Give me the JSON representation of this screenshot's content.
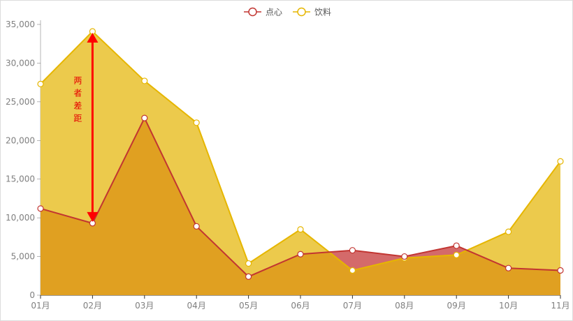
{
  "chart_data": {
    "type": "area",
    "title": "",
    "xlabel": "",
    "ylabel": "",
    "ylim": [
      0,
      35000
    ],
    "yticks": [
      0,
      5000,
      10000,
      15000,
      20000,
      25000,
      30000,
      35000
    ],
    "ytick_labels": [
      "0",
      "5,000",
      "10,000",
      "15,000",
      "20,000",
      "25,000",
      "30,000",
      "35,000"
    ],
    "categories": [
      "01月",
      "02月",
      "03月",
      "04月",
      "05月",
      "06月",
      "07月",
      "08月",
      "09月",
      "10月",
      "11月"
    ],
    "grid": false,
    "legend_position": "top-center",
    "series": [
      {
        "name": "点心",
        "color": "#c23531",
        "fill": "#d46a6a",
        "values": [
          11200,
          9300,
          22900,
          8900,
          2400,
          5300,
          5800,
          5000,
          6400,
          3500,
          3200
        ]
      },
      {
        "name": "饮料",
        "color": "#e6b600",
        "fill": "#ecca4c",
        "values": [
          27300,
          34100,
          27700,
          22300,
          4100,
          8500,
          3200,
          4800,
          5200,
          8200,
          17300
        ]
      }
    ],
    "overlap_fill": "#e0a021",
    "annotation": {
      "text": "两者差距",
      "category": "02月",
      "from_value": 34100,
      "to_value": 9300,
      "color": "#ff0000"
    }
  }
}
